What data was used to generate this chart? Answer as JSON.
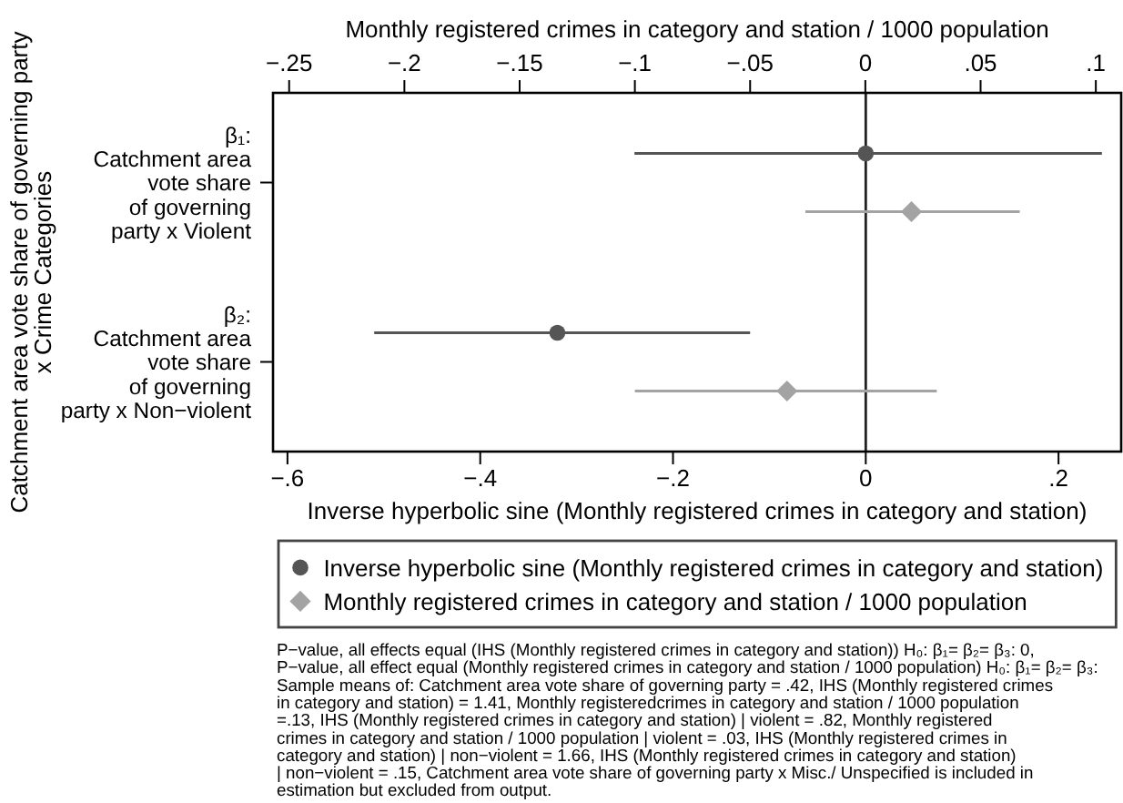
{
  "chart_data": {
    "type": "scatter",
    "orientation": "horizontal",
    "xlabel": "Inverse hyperbolic sine (Monthly registered crimes in category and station)",
    "x2label": "Monthly registered crimes in category and station / 1000 population",
    "ylabel": "Catchment area vote share of governing party\nx Crime Categories",
    "categories": [
      "β₁:\nCatchment area\nvote share\nof governing\nparty x Violent",
      "β₂:\nCatchment area\nvote share\nof governing\nparty x Non−violent"
    ],
    "xlim": [
      -0.615,
      0.265
    ],
    "xticks": [
      {
        "value": -0.6,
        "label": "−.6"
      },
      {
        "value": -0.4,
        "label": "−.4"
      },
      {
        "value": -0.2,
        "label": "−.2"
      },
      0,
      {
        "value": 0.2,
        "label": ".2"
      }
    ],
    "x2lim": [
      -0.257,
      0.111
    ],
    "x2ticks": [
      {
        "value": -0.25,
        "label": "−.25"
      },
      {
        "value": -0.2,
        "label": "−.2"
      },
      {
        "value": -0.15,
        "label": "−.15"
      },
      {
        "value": -0.1,
        "label": "−.1"
      },
      {
        "value": -0.05,
        "label": "−.05"
      },
      0,
      {
        "value": 0.05,
        "label": ".05"
      },
      {
        "value": 0.1,
        "label": ".1"
      }
    ],
    "series": [
      {
        "name": "Inverse hyperbolic sine (Monthly registered crimes in category and station)",
        "color": "#555555",
        "marker": "circle",
        "values": [
          0.0,
          -0.32
        ],
        "errors": [
          [
            -0.24,
            0.245
          ],
          [
            -0.51,
            -0.12
          ]
        ]
      },
      {
        "name": "Monthly registered crimes in category and station / 1000 population",
        "color": "#a3a3a3",
        "marker": "diamond",
        "axis": "x2",
        "values": [
          0.02,
          -0.034
        ],
        "errors": [
          [
            -0.026,
            0.067
          ],
          [
            -0.1,
            0.031
          ]
        ]
      }
    ],
    "ref_lines": [
      {
        "axis": "x",
        "value": 0,
        "color": "#222222"
      }
    ],
    "legend": "bottom",
    "annotations": [
      "P−value, all effects equal (IHS (Monthly registered crimes in category and station)) H₀: β₁= β₂= β₃: 0,",
      "P−value, all effect equal (Monthly registered crimes in category and station / 1000 population) H₀: β₁= β₂= β₃:",
      "Sample means of: Catchment area vote share of governing party = .42, IHS (Monthly registered crimes",
      "in category and station) = 1.41, Monthly registeredcrimes in category and station / 1000 population",
      "=.13, IHS (Monthly registered crimes in category and station) | violent = .82, Monthly registered",
      "crimes in category and station / 1000 population | violent = .03, IHS (Monthly registered crimes in",
      "category and station) | non−violent = 1.66, IHS (Monthly registered crimes in category and station)",
      "| non−violent = .15, Catchment area vote share of governing party x Misc./ Unspecified is included in",
      "estimation but excluded from output."
    ]
  }
}
